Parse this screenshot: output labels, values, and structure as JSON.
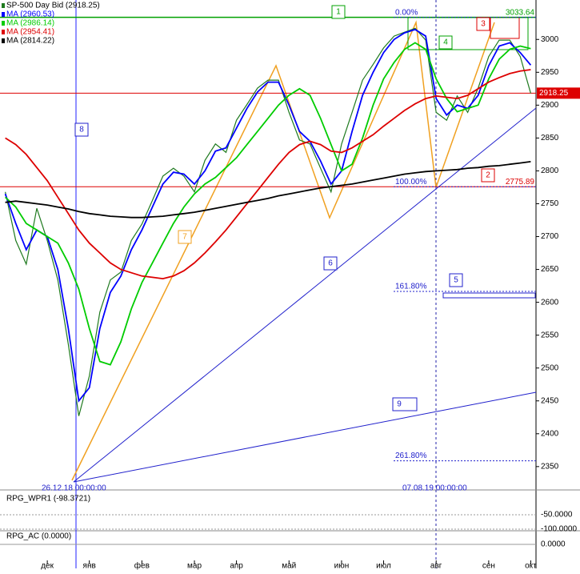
{
  "chart_data": {
    "type": "line",
    "categories": [
      null,
      null,
      null,
      null,
      "дек",
      null,
      null,
      null,
      "янв",
      null,
      null,
      null,
      null,
      "фев",
      null,
      null,
      null,
      null,
      "мар",
      null,
      null,
      null,
      "апр",
      null,
      null,
      null,
      null,
      "май",
      null,
      null,
      null,
      null,
      "июн",
      null,
      null,
      null,
      "июл",
      null,
      null,
      null,
      null,
      "авг",
      null,
      null,
      null,
      null,
      "сен",
      null,
      null,
      null,
      "окт"
    ],
    "series": [
      {
        "name": "SP-500 Day Bid (2918.25)",
        "color": "#1f7a1f",
        "values": [
          2768,
          2694,
          2658,
          2743,
          2694,
          2634,
          2536,
          2427,
          2488,
          2585,
          2634,
          2646,
          2694,
          2719,
          2755,
          2792,
          2804,
          2792,
          2768,
          2816,
          2841,
          2828,
          2877,
          2901,
          2926,
          2938,
          2938,
          2889,
          2847,
          2841,
          2804,
          2768,
          2841,
          2889,
          2938,
          2962,
          2987,
          3005,
          3011,
          3017,
          2999,
          2889,
          2877,
          2914,
          2889,
          2926,
          2974,
          2999,
          2999,
          2974,
          2918
        ]
      },
      {
        "name": "MA (2960.53)",
        "color": "#0000ff",
        "values": [
          2765,
          2720,
          2680,
          2710,
          2700,
          2650,
          2560,
          2450,
          2470,
          2560,
          2615,
          2640,
          2680,
          2710,
          2745,
          2780,
          2798,
          2795,
          2780,
          2800,
          2830,
          2835,
          2865,
          2895,
          2920,
          2935,
          2935,
          2900,
          2860,
          2845,
          2815,
          2780,
          2800,
          2860,
          2915,
          2950,
          2980,
          3000,
          3010,
          3015,
          3005,
          2910,
          2885,
          2900,
          2895,
          2915,
          2960,
          2990,
          2995,
          2980,
          2961
        ]
      },
      {
        "name": "MA (2986.14)",
        "color": "#00cc00",
        "values": [
          2760,
          2745,
          2720,
          2710,
          2700,
          2690,
          2660,
          2620,
          2560,
          2510,
          2505,
          2540,
          2590,
          2630,
          2660,
          2690,
          2720,
          2745,
          2765,
          2780,
          2790,
          2805,
          2820,
          2840,
          2860,
          2880,
          2900,
          2915,
          2925,
          2915,
          2880,
          2840,
          2800,
          2810,
          2850,
          2900,
          2940,
          2965,
          2985,
          2995,
          2985,
          2940,
          2910,
          2890,
          2895,
          2900,
          2940,
          2970,
          2985,
          2990,
          2986
        ]
      },
      {
        "name": "MA (2954.41)",
        "color": "#dd0000",
        "values": [
          2850,
          2840,
          2825,
          2805,
          2785,
          2760,
          2735,
          2710,
          2690,
          2675,
          2660,
          2650,
          2645,
          2640,
          2638,
          2636,
          2640,
          2648,
          2660,
          2675,
          2692,
          2710,
          2730,
          2750,
          2770,
          2790,
          2810,
          2828,
          2840,
          2845,
          2840,
          2830,
          2828,
          2835,
          2845,
          2855,
          2868,
          2880,
          2892,
          2902,
          2910,
          2914,
          2912,
          2910,
          2915,
          2925,
          2935,
          2942,
          2948,
          2952,
          2954
        ]
      },
      {
        "name": "MA (2814.22)",
        "color": "#000000",
        "values": [
          2752,
          2754,
          2752,
          2750,
          2748,
          2745,
          2742,
          2738,
          2735,
          2733,
          2731,
          2730,
          2729,
          2729,
          2730,
          2731,
          2733,
          2735,
          2737,
          2740,
          2743,
          2746,
          2749,
          2752,
          2755,
          2758,
          2762,
          2765,
          2768,
          2771,
          2774,
          2776,
          2778,
          2780,
          2783,
          2786,
          2789,
          2792,
          2795,
          2797,
          2799,
          2800,
          2801,
          2802,
          2804,
          2805,
          2807,
          2808,
          2810,
          2812,
          2814
        ]
      }
    ],
    "ylim": [
      2323,
      3060
    ],
    "yticks": [
      2350,
      2400,
      2450,
      2500,
      2550,
      2600,
      2650,
      2700,
      2750,
      2800,
      2850,
      2900,
      2950,
      3000
    ],
    "levels": [
      {
        "value": 3033.64,
        "color": "#00a000"
      },
      {
        "value": 2775.89,
        "color": "#dd0000"
      },
      {
        "value": 2918.25,
        "color": "#dd0000"
      }
    ],
    "fib_levels": [
      {
        "value": 0,
        "label": "0.00%"
      },
      {
        "value": 100,
        "label": "100.00%"
      },
      {
        "value": 161.8,
        "label": "161.80%"
      },
      {
        "value": 261.8,
        "label": "261.80%"
      }
    ],
    "markers": [
      "1",
      "2",
      "3",
      "4",
      "5",
      "6",
      "7",
      "8",
      "9"
    ],
    "time_labels": [
      "26.12.18 00:00:00",
      "07.08.19 00:00:00"
    ]
  },
  "indicators": {
    "wpr": {
      "title": "RPG_WPR1 (-98.3721)",
      "yticks": [
        {
          "value": -50,
          "label": "-50.0000"
        },
        {
          "value": -100,
          "label": "-100.0000"
        }
      ]
    },
    "ac": {
      "title": "RPG_AC (0.0000)",
      "yticks": [
        {
          "value": 0,
          "label": "0.0000"
        }
      ]
    }
  }
}
